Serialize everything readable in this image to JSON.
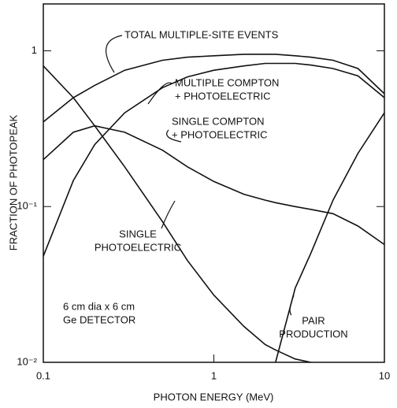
{
  "chart_data": {
    "type": "line",
    "x_label": "PHOTON ENERGY (MeV)",
    "y_label": "FRACTION OF PHOTOPEAK",
    "x": [
      0.1,
      0.15,
      0.2,
      0.3,
      0.5,
      0.7,
      1,
      1.5,
      2,
      2.3,
      3,
      3.7,
      5,
      7,
      10
    ],
    "series": [
      {
        "color": "#111111",
        "values": [
          0.35,
          0.5,
          0.6,
          0.75,
          0.87,
          0.91,
          0.93,
          0.95,
          0.95,
          0.95,
          0.93,
          0.91,
          0.87,
          0.77,
          0.53
        ]
      },
      {
        "color": "#111111",
        "values": [
          0.048,
          0.147,
          0.25,
          0.4,
          0.58,
          0.68,
          0.75,
          0.8,
          0.83,
          0.83,
          0.83,
          0.81,
          0.77,
          0.69,
          0.5
        ]
      },
      {
        "color": "#111111",
        "values": [
          0.2,
          0.3,
          0.33,
          0.3,
          0.23,
          0.18,
          0.145,
          0.12,
          0.11,
          0.106,
          0.1,
          0.096,
          0.09,
          0.075,
          0.057
        ]
      },
      {
        "color": "#111111",
        "values": [
          0.8,
          0.5,
          0.33,
          0.18,
          0.08,
          0.045,
          0.027,
          0.017,
          0.013,
          0.012,
          0.0105,
          0.01,
          null,
          null,
          null
        ]
      },
      {
        "color": "#111111",
        "values": [
          null,
          null,
          null,
          null,
          null,
          null,
          null,
          null,
          null,
          0.01,
          0.03,
          0.05,
          0.11,
          0.22,
          0.4
        ]
      }
    ],
    "annotations": [
      [
        "TOTAL MULTIPLE-SITE EVENTS"
      ],
      [
        "MULTIPLE COMPTON",
        "+ PHOTOELECTRIC"
      ],
      [
        "SINGLE COMPTON",
        "+ PHOTOELECTRIC"
      ],
      [
        "SINGLE",
        "PHOTOELECTRIC"
      ],
      [
        "PAIR",
        "PRODUCTION"
      ],
      [
        "6 cm dia x 6 cm",
        "Ge DETECTOR"
      ]
    ],
    "log_x": true,
    "log_y": true,
    "xlim": [
      0.1,
      10
    ],
    "ylim": [
      0.01,
      2
    ],
    "xticks": [
      {
        "value": 0.1,
        "label": "0.1"
      },
      1,
      10
    ],
    "yticks": [
      {
        "value": 0.01,
        "label": "10⁻²"
      },
      {
        "value": 0.1,
        "label": "10⁻¹"
      },
      1
    ]
  }
}
